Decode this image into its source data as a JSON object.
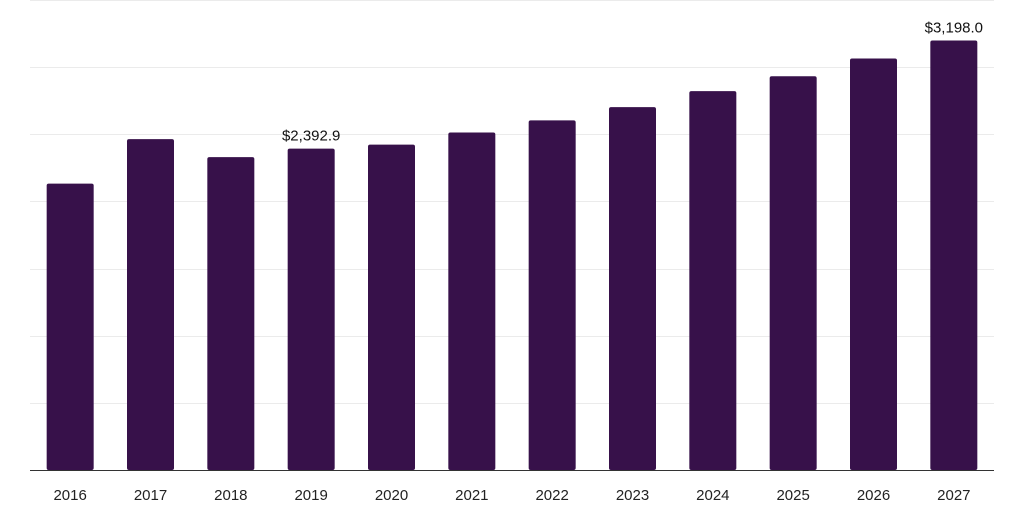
{
  "chart_data": {
    "type": "bar",
    "title": "",
    "xlabel": "",
    "ylabel": "",
    "categories": [
      "2016",
      "2017",
      "2018",
      "2019",
      "2020",
      "2021",
      "2022",
      "2023",
      "2024",
      "2025",
      "2026",
      "2027"
    ],
    "values": [
      2133,
      2464,
      2330,
      2392.9,
      2423,
      2513,
      2604,
      2702,
      2821,
      2932,
      3064,
      3198.0
    ],
    "ylim": [
      0,
      3500
    ],
    "grid": true,
    "bar_color": "#37114a",
    "data_labels": [
      {
        "index": 3,
        "text": "$2,392.9"
      },
      {
        "index": 11,
        "text": "$3,198.0"
      }
    ]
  }
}
